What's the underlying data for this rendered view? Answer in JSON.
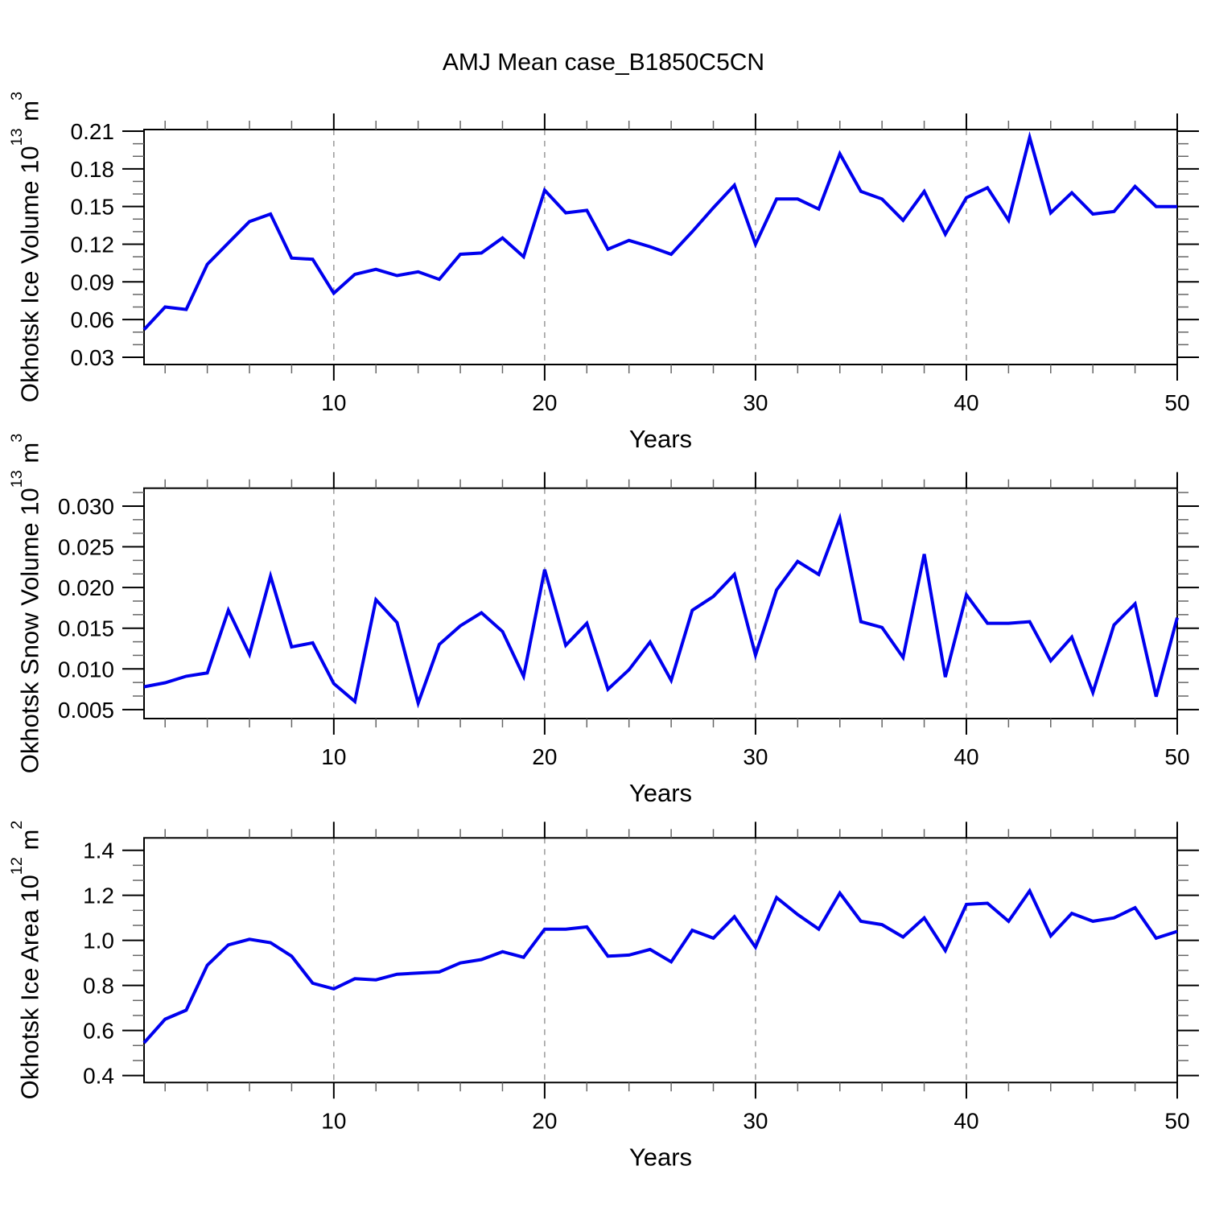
{
  "chart_data": {
    "type": "line",
    "title": "AMJ Mean case_B1850C5CN",
    "x_label": "Years",
    "x": [
      1,
      2,
      3,
      4,
      5,
      6,
      7,
      8,
      9,
      10,
      11,
      12,
      13,
      14,
      15,
      16,
      17,
      18,
      19,
      20,
      21,
      22,
      23,
      24,
      25,
      26,
      27,
      28,
      29,
      30,
      31,
      32,
      33,
      34,
      35,
      36,
      37,
      38,
      39,
      40,
      41,
      42,
      43,
      44,
      45,
      46,
      47,
      48,
      49,
      50
    ],
    "x_ticks": [
      10,
      20,
      30,
      40,
      50
    ],
    "x_tick_labels": [
      "10",
      "20",
      "30",
      "40",
      "50"
    ],
    "x_minor_step": 2,
    "grid_x": [
      10,
      20,
      30,
      40
    ],
    "grid_style": "dashed",
    "legend": "none",
    "colors": {
      "line": "#0000ee",
      "grid": "#999999",
      "frame": "#000000",
      "minor_tick": "#666666"
    },
    "panels": [
      {
        "id": "ice-volume",
        "ylabel": "Okhotsk Ice Volume 10^13 m^3",
        "ylabel_parts": {
          "base": "Okhotsk Ice Volume 10",
          "exp": "13",
          "unit": " m",
          "unit_exp": "3"
        },
        "yticks": [
          0.03,
          0.06,
          0.09,
          0.12,
          0.15,
          0.18,
          0.21
        ],
        "ytick_labels": [
          "0.03",
          "0.06",
          "0.09",
          "0.12",
          "0.15",
          "0.18",
          "0.21"
        ],
        "ylim": [
          0.0242,
          0.2113
        ],
        "values": [
          0.052,
          0.07,
          0.068,
          0.104,
          0.121,
          0.138,
          0.144,
          0.109,
          0.108,
          0.081,
          0.096,
          0.1,
          0.095,
          0.098,
          0.092,
          0.112,
          0.113,
          0.125,
          0.11,
          0.163,
          0.145,
          0.147,
          0.116,
          0.123,
          0.118,
          0.112,
          0.13,
          0.149,
          0.167,
          0.12,
          0.156,
          0.156,
          0.148,
          0.192,
          0.162,
          0.156,
          0.139,
          0.162,
          0.128,
          0.157,
          0.165,
          0.139,
          0.205,
          0.145,
          0.161,
          0.144,
          0.146,
          0.166,
          0.15,
          0.15
        ]
      },
      {
        "id": "snow-volume",
        "ylabel": "Okhotsk Snow Volume 10^13 m^3",
        "ylabel_parts": {
          "base": "Okhotsk Snow Volume 10",
          "exp": "13",
          "unit": " m",
          "unit_exp": "3"
        },
        "yticks": [
          0.005,
          0.01,
          0.015,
          0.02,
          0.025,
          0.03
        ],
        "ytick_labels": [
          "0.005",
          "0.010",
          "0.015",
          "0.020",
          "0.025",
          "0.030"
        ],
        "ylim": [
          0.0039,
          0.0322
        ],
        "values": [
          0.0078,
          0.0083,
          0.0091,
          0.0095,
          0.0172,
          0.0118,
          0.0214,
          0.0127,
          0.0132,
          0.0082,
          0.006,
          0.0185,
          0.0157,
          0.0058,
          0.013,
          0.0153,
          0.0169,
          0.0146,
          0.0091,
          0.0222,
          0.0129,
          0.0156,
          0.0075,
          0.0099,
          0.0133,
          0.0086,
          0.0172,
          0.0189,
          0.0216,
          0.0117,
          0.0197,
          0.0232,
          0.0216,
          0.0285,
          0.0158,
          0.0151,
          0.0114,
          0.0241,
          0.009,
          0.0191,
          0.0156,
          0.0156,
          0.0158,
          0.011,
          0.0139,
          0.0071,
          0.0154,
          0.018,
          0.0066,
          0.0163
        ]
      },
      {
        "id": "ice-area",
        "ylabel": "Okhotsk Ice Area 10^12 m^2",
        "ylabel_parts": {
          "base": "Okhotsk Ice Area 10",
          "exp": "12",
          "unit": " m",
          "unit_exp": "2"
        },
        "yticks": [
          0.4,
          0.6,
          0.8,
          1.0,
          1.2,
          1.4
        ],
        "ytick_labels": [
          "0.4",
          "0.6",
          "0.8",
          "1.0",
          "1.2",
          "1.4"
        ],
        "ylim": [
          0.369,
          1.455
        ],
        "values": [
          0.545,
          0.65,
          0.69,
          0.89,
          0.98,
          1.005,
          0.99,
          0.93,
          0.81,
          0.785,
          0.83,
          0.825,
          0.85,
          0.855,
          0.86,
          0.9,
          0.915,
          0.95,
          0.925,
          1.05,
          1.05,
          1.06,
          0.93,
          0.935,
          0.96,
          0.905,
          1.045,
          1.01,
          1.105,
          0.97,
          1.19,
          1.115,
          1.05,
          1.21,
          1.085,
          1.07,
          1.015,
          1.1,
          0.955,
          1.16,
          1.165,
          1.085,
          1.22,
          1.02,
          1.12,
          1.085,
          1.1,
          1.145,
          1.01,
          1.04
        ]
      }
    ]
  }
}
